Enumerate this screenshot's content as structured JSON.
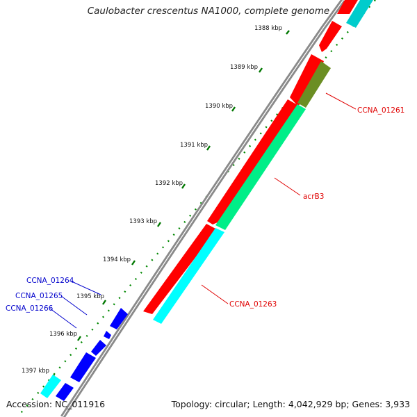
{
  "map": {
    "title": "Caulobacter crescentus NA1000, complete genome",
    "accession": "Accession: NC_011916",
    "topology": "Topology: circular; Length: 4,042,929 bp; Genes: 3,933",
    "ruler_labels": [
      "1388 kbp",
      "1389 kbp",
      "1390 kbp",
      "1391 kbp",
      "1392 kbp",
      "1393 kbp",
      "1394 kbp",
      "1395 kbp",
      "1396 kbp",
      "1397 kbp"
    ],
    "gene_labels": {
      "ccna_01261": "CCNA_01261",
      "acrb3": "acrB3",
      "ccna_01263": "CCNA_01263",
      "ccna_01264": "CCNA_01264",
      "ccna_01265": "CCNA_01265",
      "ccna_01266": "CCNA_01266"
    },
    "colors": {
      "forward_cds": "#ff0000",
      "reverse_cds": "#0000ff",
      "rna_feature": "#00ffff",
      "green_feature": "#00ee88",
      "olive_feature": "#6b8e23",
      "backbone": "#888888",
      "tick": "#008800"
    }
  }
}
